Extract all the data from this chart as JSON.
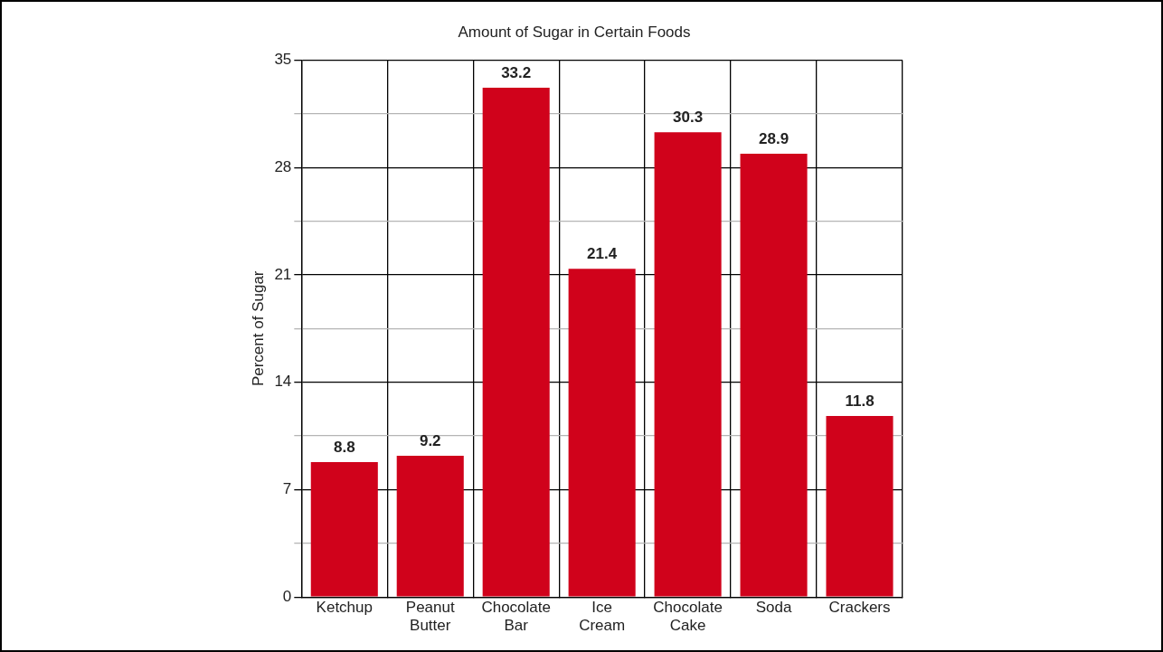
{
  "chart_data": {
    "type": "bar",
    "title": "Amount of Sugar in Certain Foods",
    "ylabel": "Percent of Sugar",
    "categories": [
      "Ketchup",
      "Peanut Butter",
      "Chocolate Bar",
      "Ice Cream",
      "Chocolate Cake",
      "Soda",
      "Crackers"
    ],
    "values": [
      8.8,
      9.2,
      33.2,
      21.4,
      30.3,
      28.9,
      11.8
    ],
    "color": "#d0021b",
    "ylim": [
      0,
      35
    ],
    "yticks": [
      0,
      {
        "value": 3.5,
        "label": null
      },
      7,
      {
        "value": 10.5,
        "label": null
      },
      14,
      {
        "value": 17.5,
        "label": null
      },
      21,
      {
        "value": 24.5,
        "label": null
      },
      28,
      {
        "value": 31.5,
        "label": null
      },
      35
    ],
    "grid": true,
    "data_labels": true
  }
}
